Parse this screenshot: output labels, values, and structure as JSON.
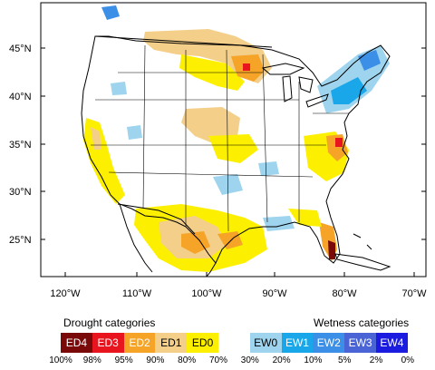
{
  "map": {
    "lat_labels": [
      "45°N",
      "40°N",
      "35°N",
      "30°N",
      "25°N"
    ],
    "lon_labels": [
      "120°W",
      "110°W",
      "100°W",
      "90°W",
      "80°W",
      "70°W"
    ]
  },
  "legend": {
    "drought_title": "Drought categories",
    "wetness_title": "Wetness categories",
    "categories": [
      {
        "label": "ED4",
        "color": "#7a0a0a",
        "text_color": "#ffffff"
      },
      {
        "label": "ED3",
        "color": "#e8141e",
        "text_color": "#ffffff"
      },
      {
        "label": "ED2",
        "color": "#f5a428",
        "text_color": "#ffffff"
      },
      {
        "label": "ED1",
        "color": "#f4cf8a",
        "text_color": "#000000"
      },
      {
        "label": "ED0",
        "color": "#fcf000",
        "text_color": "#000000"
      },
      {
        "label": "",
        "color": "#ffffff",
        "text_color": "#000000"
      },
      {
        "label": "EW0",
        "color": "#9ed4ee",
        "text_color": "#000000"
      },
      {
        "label": "EW1",
        "color": "#1aa7ea",
        "text_color": "#ffffff"
      },
      {
        "label": "EW2",
        "color": "#3c8fe6",
        "text_color": "#ffffff"
      },
      {
        "label": "EW3",
        "color": "#4a64d6",
        "text_color": "#ffffff"
      },
      {
        "label": "EW4",
        "color": "#1c1ce0",
        "text_color": "#ffffff"
      }
    ],
    "percentiles": [
      "100%",
      "98%",
      "95%",
      "90%",
      "80%",
      "70%",
      "30%",
      "20%",
      "10%",
      "5%",
      "2%",
      "0%"
    ]
  }
}
